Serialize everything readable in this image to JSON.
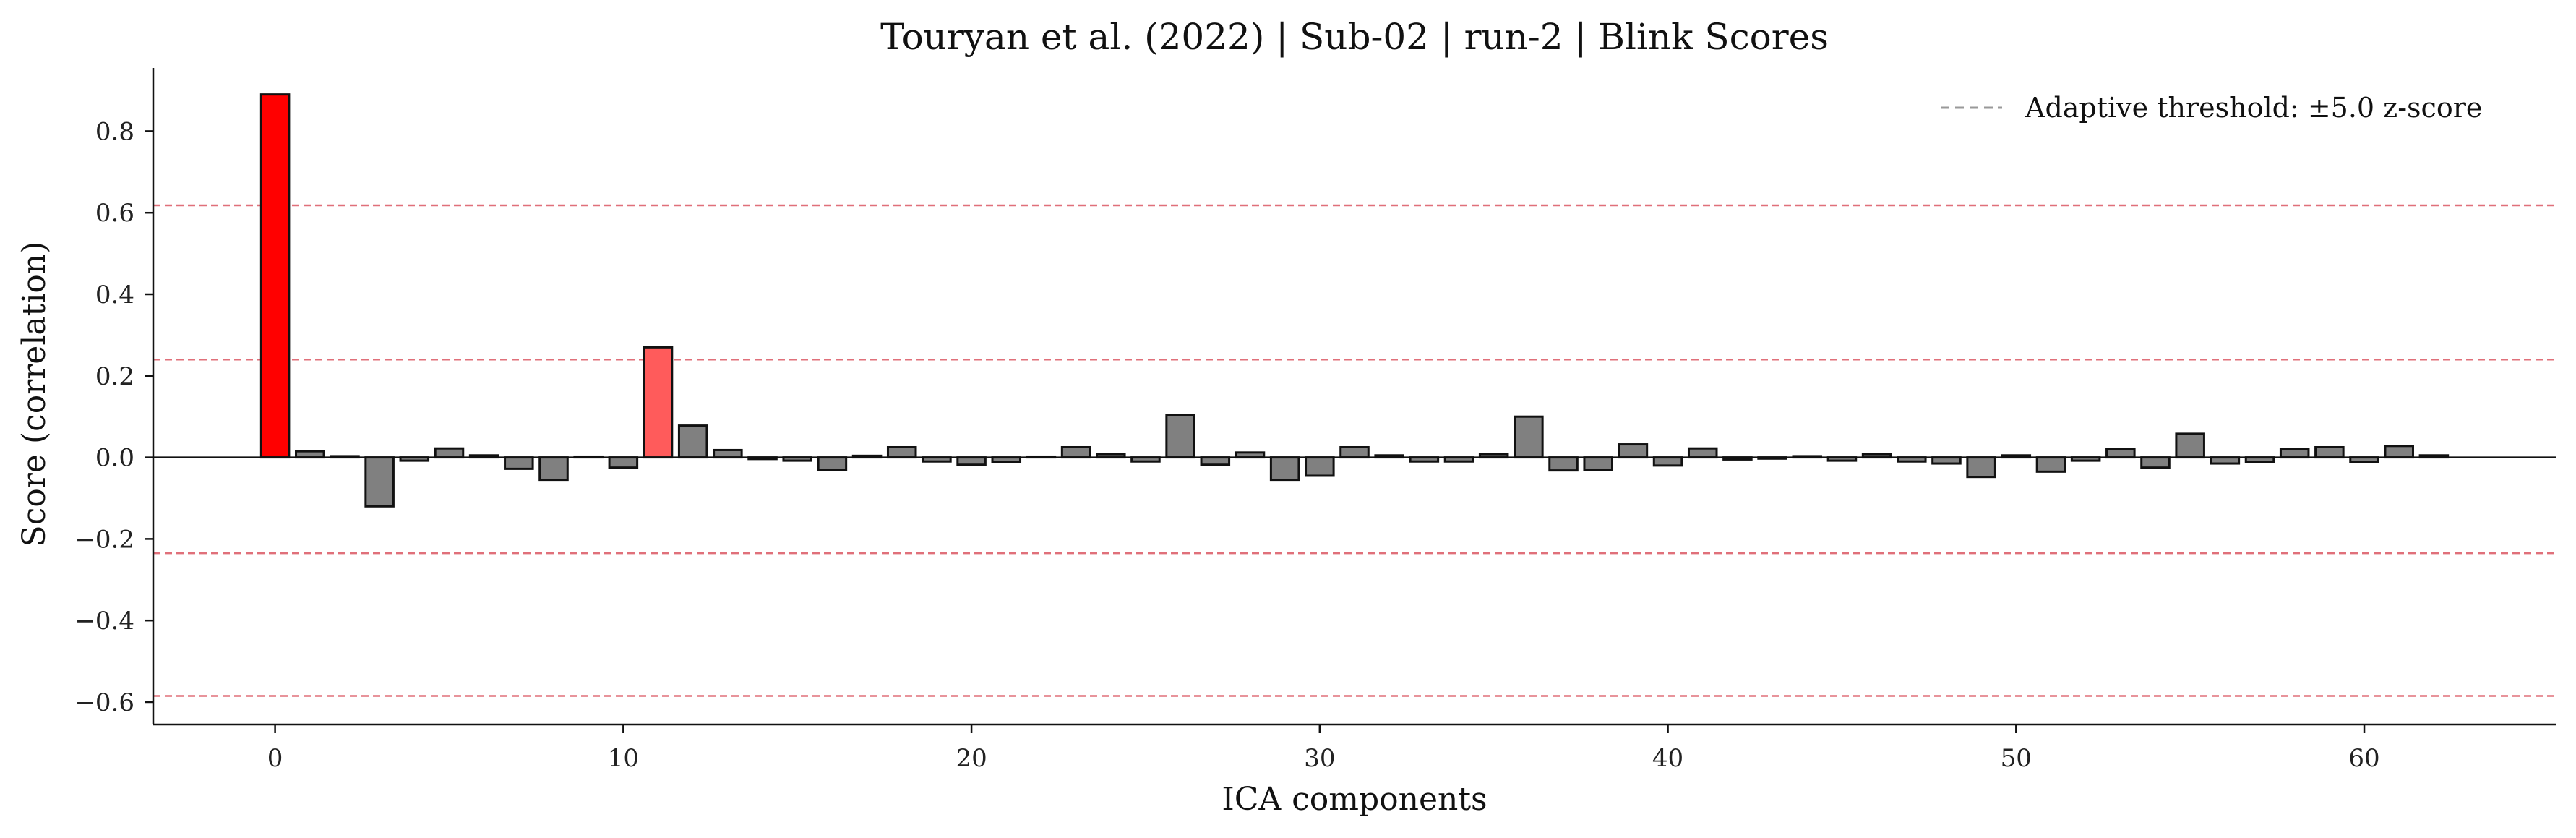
{
  "chart_data": {
    "type": "bar",
    "title": "Touryan et al. (2022) | Sub-02 | run-2 | Blink Scores",
    "xlabel": "ICA components",
    "ylabel": "Score (correlation)",
    "xlim": [
      -3.5,
      65.5
    ],
    "ylim": [
      -0.655,
      0.955
    ],
    "xticks": [
      0,
      10,
      20,
      30,
      40,
      50,
      60
    ],
    "yticks": [
      -0.6,
      -0.4,
      -0.2,
      0.0,
      0.2,
      0.4,
      0.6,
      0.8
    ],
    "ytick_labels": [
      "−0.6",
      "−0.4",
      "−0.2",
      "0.0",
      "0.2",
      "0.4",
      "0.6",
      "0.8"
    ],
    "x": [
      0,
      1,
      2,
      3,
      4,
      5,
      6,
      7,
      8,
      9,
      10,
      11,
      12,
      13,
      14,
      15,
      16,
      17,
      18,
      19,
      20,
      21,
      22,
      23,
      24,
      25,
      26,
      27,
      28,
      29,
      30,
      31,
      32,
      33,
      34,
      35,
      36,
      37,
      38,
      39,
      40,
      41,
      42,
      43,
      44,
      45,
      46,
      47,
      48,
      49,
      50,
      51,
      52,
      53,
      54,
      55,
      56,
      57,
      58,
      59,
      60,
      61,
      62
    ],
    "values": [
      0.89,
      0.015,
      0.003,
      -0.12,
      -0.008,
      0.022,
      0.005,
      -0.028,
      -0.055,
      0.002,
      -0.025,
      0.27,
      0.078,
      0.018,
      -0.004,
      -0.008,
      -0.03,
      0.004,
      0.025,
      -0.01,
      -0.018,
      -0.012,
      0.002,
      0.025,
      0.008,
      -0.01,
      0.104,
      -0.018,
      0.012,
      -0.055,
      -0.045,
      0.025,
      0.005,
      -0.01,
      -0.01,
      0.008,
      0.1,
      -0.032,
      -0.03,
      0.032,
      -0.02,
      0.022,
      -0.005,
      -0.003,
      0.003,
      -0.008,
      0.008,
      -0.01,
      -0.015,
      -0.048,
      0.005,
      -0.035,
      -0.008,
      0.02,
      -0.025,
      0.058,
      -0.015,
      -0.012,
      0.02,
      0.025,
      -0.012,
      0.028,
      0.005
    ],
    "highlight": [
      {
        "index": 0,
        "color": "#ff0000"
      },
      {
        "index": 11,
        "color": "#ff5b5b"
      }
    ],
    "bar_color": "#808080",
    "edge_color": "#111111",
    "threshold_lines": [
      0.618,
      0.24,
      -0.235,
      -0.585
    ],
    "threshold_color": "#e0707a",
    "zero_line": 0.0,
    "grid": false,
    "legend": {
      "position": "top-right",
      "entries": [
        {
          "label": "Adaptive threshold: ±5.0 z-score",
          "style": "dashed",
          "color": "#999999"
        }
      ]
    }
  }
}
